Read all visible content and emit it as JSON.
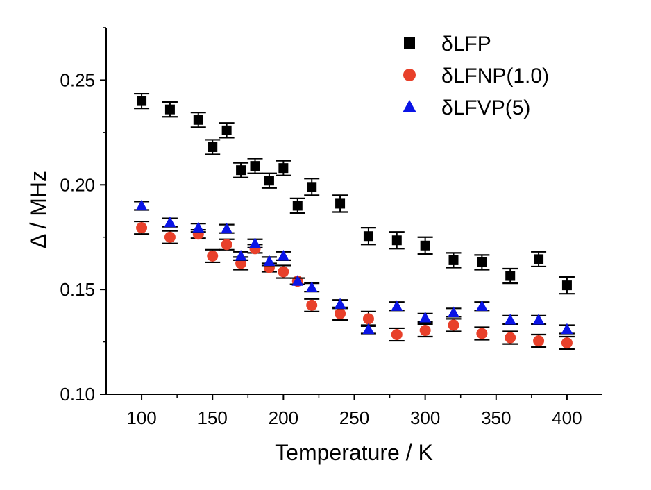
{
  "chart_data": {
    "type": "scatter",
    "xlabel": "Temperature / K",
    "ylabel": "Δ / MHz",
    "xlim": [
      75,
      425
    ],
    "ylim": [
      0.1,
      0.275
    ],
    "x_ticks": [
      100,
      150,
      200,
      250,
      300,
      350,
      400
    ],
    "x_tick_labels": [
      "100",
      "150",
      "200",
      "250",
      "300",
      "350",
      "400"
    ],
    "y_ticks": [
      0.1,
      0.15,
      0.2,
      0.25
    ],
    "y_tick_labels": [
      "0.10",
      "0.15",
      "0.20",
      "0.25"
    ],
    "grid": false,
    "legend_position": "top-right",
    "series": [
      {
        "name": "δLFP",
        "marker": "square",
        "color": "#000000",
        "points": [
          {
            "x": 100,
            "y": 0.24,
            "err": 0.0035
          },
          {
            "x": 120,
            "y": 0.236,
            "err": 0.0035
          },
          {
            "x": 140,
            "y": 0.231,
            "err": 0.0035
          },
          {
            "x": 150,
            "y": 0.218,
            "err": 0.0035
          },
          {
            "x": 160,
            "y": 0.226,
            "err": 0.0035
          },
          {
            "x": 170,
            "y": 0.207,
            "err": 0.0035
          },
          {
            "x": 180,
            "y": 0.209,
            "err": 0.0035
          },
          {
            "x": 190,
            "y": 0.202,
            "err": 0.0035
          },
          {
            "x": 200,
            "y": 0.208,
            "err": 0.0035
          },
          {
            "x": 210,
            "y": 0.19,
            "err": 0.0035
          },
          {
            "x": 220,
            "y": 0.199,
            "err": 0.004
          },
          {
            "x": 240,
            "y": 0.191,
            "err": 0.004
          },
          {
            "x": 260,
            "y": 0.1755,
            "err": 0.004
          },
          {
            "x": 280,
            "y": 0.1735,
            "err": 0.004
          },
          {
            "x": 300,
            "y": 0.171,
            "err": 0.004
          },
          {
            "x": 320,
            "y": 0.164,
            "err": 0.0035
          },
          {
            "x": 340,
            "y": 0.163,
            "err": 0.0035
          },
          {
            "x": 360,
            "y": 0.1565,
            "err": 0.0035
          },
          {
            "x": 380,
            "y": 0.1645,
            "err": 0.0035
          },
          {
            "x": 400,
            "y": 0.152,
            "err": 0.004
          }
        ]
      },
      {
        "name": "δLFNP(1.0)",
        "marker": "circle",
        "color": "#e8402a",
        "points": [
          {
            "x": 100,
            "y": 0.1795,
            "err": 0.003
          },
          {
            "x": 120,
            "y": 0.175,
            "err": 0.003
          },
          {
            "x": 140,
            "y": 0.1765,
            "err": 0.002
          },
          {
            "x": 150,
            "y": 0.166,
            "err": 0.003
          },
          {
            "x": 160,
            "y": 0.1715,
            "err": 0.0025
          },
          {
            "x": 170,
            "y": 0.1625,
            "err": 0.003
          },
          {
            "x": 180,
            "y": 0.1695,
            "err": 0.002
          },
          {
            "x": 190,
            "y": 0.1605,
            "err": 0.002
          },
          {
            "x": 200,
            "y": 0.1585,
            "err": 0.003
          },
          {
            "x": 210,
            "y": 0.154,
            "err": 0.0015
          },
          {
            "x": 220,
            "y": 0.1425,
            "err": 0.003
          },
          {
            "x": 240,
            "y": 0.1385,
            "err": 0.003
          },
          {
            "x": 260,
            "y": 0.136,
            "err": 0.0035
          },
          {
            "x": 280,
            "y": 0.1285,
            "err": 0.003
          },
          {
            "x": 300,
            "y": 0.1305,
            "err": 0.003
          },
          {
            "x": 320,
            "y": 0.133,
            "err": 0.003
          },
          {
            "x": 340,
            "y": 0.129,
            "err": 0.003
          },
          {
            "x": 360,
            "y": 0.127,
            "err": 0.003
          },
          {
            "x": 380,
            "y": 0.1255,
            "err": 0.003
          },
          {
            "x": 400,
            "y": 0.1245,
            "err": 0.003
          }
        ]
      },
      {
        "name": "δLFVP(5)",
        "marker": "triangle",
        "color": "#0a14e6",
        "points": [
          {
            "x": 100,
            "y": 0.19,
            "err": 0.002
          },
          {
            "x": 120,
            "y": 0.182,
            "err": 0.002
          },
          {
            "x": 140,
            "y": 0.1795,
            "err": 0.002
          },
          {
            "x": 160,
            "y": 0.179,
            "err": 0.002
          },
          {
            "x": 170,
            "y": 0.166,
            "err": 0.002
          },
          {
            "x": 180,
            "y": 0.172,
            "err": 0.002
          },
          {
            "x": 190,
            "y": 0.1635,
            "err": 0.002
          },
          {
            "x": 200,
            "y": 0.166,
            "err": 0.002
          },
          {
            "x": 210,
            "y": 0.154,
            "err": 0.0015
          },
          {
            "x": 220,
            "y": 0.151,
            "err": 0.002
          },
          {
            "x": 240,
            "y": 0.143,
            "err": 0.002
          },
          {
            "x": 260,
            "y": 0.131,
            "err": 0.002
          },
          {
            "x": 280,
            "y": 0.142,
            "err": 0.002
          },
          {
            "x": 300,
            "y": 0.1365,
            "err": 0.002
          },
          {
            "x": 320,
            "y": 0.139,
            "err": 0.002
          },
          {
            "x": 340,
            "y": 0.142,
            "err": 0.002
          },
          {
            "x": 360,
            "y": 0.1355,
            "err": 0.002
          },
          {
            "x": 380,
            "y": 0.1355,
            "err": 0.002
          },
          {
            "x": 400,
            "y": 0.131,
            "err": 0.002
          }
        ]
      }
    ]
  }
}
